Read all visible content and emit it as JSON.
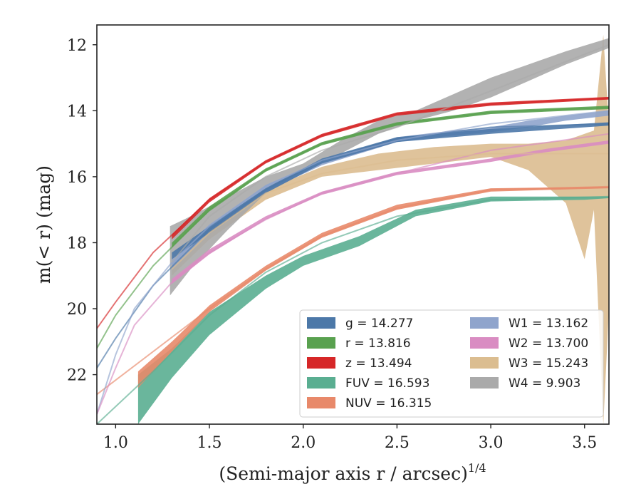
{
  "chart_data": {
    "type": "area",
    "xlabel": "(Semi-major axis r / arcsec)",
    "xlabel_superscript": "1/4",
    "ylabel": "m(< r) (mag)",
    "xlim": [
      0.9,
      3.63
    ],
    "ylim": [
      23.5,
      11.4
    ],
    "y_inverted": true,
    "x_ticks": [
      "1.0",
      "1.5",
      "2.0",
      "2.5",
      "3.0",
      "3.5"
    ],
    "y_ticks": [
      "12",
      "14",
      "16",
      "18",
      "20",
      "22"
    ],
    "legend_position": "lower-right",
    "series": [
      {
        "key": "g",
        "name": "g = 14.277",
        "color": "#4c78a8",
        "model": [
          [
            0.9,
            21.8
          ],
          [
            1.0,
            20.9
          ],
          [
            1.2,
            19.3
          ],
          [
            1.5,
            17.6
          ],
          [
            1.8,
            16.4
          ],
          [
            2.1,
            15.5
          ],
          [
            2.5,
            14.85
          ],
          [
            3.0,
            14.5
          ],
          [
            3.63,
            14.4
          ]
        ],
        "band_upper": [
          [
            1.3,
            18.3
          ],
          [
            1.5,
            17.5
          ],
          [
            1.8,
            16.35
          ],
          [
            2.1,
            15.45
          ],
          [
            2.5,
            14.8
          ],
          [
            3.0,
            14.55
          ],
          [
            3.63,
            14.35
          ]
        ],
        "band_lower": [
          [
            1.3,
            18.5
          ],
          [
            1.5,
            17.7
          ],
          [
            1.8,
            16.5
          ],
          [
            2.1,
            15.6
          ],
          [
            2.5,
            14.95
          ],
          [
            3.0,
            14.7
          ],
          [
            3.63,
            14.45
          ]
        ]
      },
      {
        "key": "r",
        "name": "r = 13.816",
        "color": "#59a14f",
        "model": [
          [
            0.9,
            21.2
          ],
          [
            1.0,
            20.2
          ],
          [
            1.2,
            18.7
          ],
          [
            1.5,
            17.0
          ],
          [
            1.8,
            15.8
          ],
          [
            2.1,
            15.0
          ],
          [
            2.5,
            14.4
          ],
          [
            3.0,
            14.05
          ],
          [
            3.63,
            13.9
          ]
        ],
        "band_upper": [
          [
            1.3,
            18.0
          ],
          [
            1.5,
            16.9
          ],
          [
            1.8,
            15.75
          ],
          [
            2.1,
            14.95
          ],
          [
            2.5,
            14.35
          ],
          [
            3.0,
            14.0
          ],
          [
            3.63,
            13.85
          ]
        ],
        "band_lower": [
          [
            1.3,
            18.15
          ],
          [
            1.5,
            17.05
          ],
          [
            1.8,
            15.85
          ],
          [
            2.1,
            15.05
          ],
          [
            2.5,
            14.45
          ],
          [
            3.0,
            14.1
          ],
          [
            3.63,
            13.95
          ]
        ]
      },
      {
        "key": "z",
        "name": "z = 13.494",
        "color": "#d62728",
        "model": [
          [
            0.9,
            20.6
          ],
          [
            1.0,
            19.8
          ],
          [
            1.2,
            18.3
          ],
          [
            1.5,
            16.7
          ],
          [
            1.8,
            15.55
          ],
          [
            2.1,
            14.75
          ],
          [
            2.5,
            14.1
          ],
          [
            3.0,
            13.8
          ],
          [
            3.63,
            13.62
          ]
        ],
        "band_upper": [
          [
            1.3,
            17.75
          ],
          [
            1.5,
            16.65
          ],
          [
            1.8,
            15.5
          ],
          [
            2.1,
            14.7
          ],
          [
            2.5,
            14.05
          ],
          [
            3.0,
            13.75
          ],
          [
            3.63,
            13.58
          ]
        ],
        "band_lower": [
          [
            1.3,
            17.9
          ],
          [
            1.5,
            16.78
          ],
          [
            1.8,
            15.6
          ],
          [
            2.1,
            14.8
          ],
          [
            2.5,
            14.15
          ],
          [
            3.0,
            13.85
          ],
          [
            3.63,
            13.66
          ]
        ]
      },
      {
        "key": "FUV",
        "name": "FUV = 16.593",
        "color": "#5aae91",
        "model": [
          [
            0.9,
            23.5
          ],
          [
            1.2,
            21.9
          ],
          [
            1.5,
            20.2
          ],
          [
            1.8,
            18.9
          ],
          [
            2.1,
            18.0
          ],
          [
            2.5,
            17.2
          ],
          [
            3.0,
            16.7
          ],
          [
            3.63,
            16.6
          ]
        ],
        "band_upper": [
          [
            1.12,
            22.0
          ],
          [
            1.3,
            21.2
          ],
          [
            1.5,
            20.1
          ],
          [
            1.8,
            19.0
          ],
          [
            2.0,
            18.4
          ],
          [
            2.3,
            17.8
          ],
          [
            2.6,
            17.0
          ],
          [
            3.0,
            16.6
          ],
          [
            3.5,
            16.6
          ],
          [
            3.63,
            16.6
          ]
        ],
        "band_lower": [
          [
            1.12,
            23.5
          ],
          [
            1.3,
            22.1
          ],
          [
            1.5,
            20.8
          ],
          [
            1.8,
            19.4
          ],
          [
            2.0,
            18.7
          ],
          [
            2.3,
            18.1
          ],
          [
            2.6,
            17.2
          ],
          [
            3.0,
            16.75
          ],
          [
            3.5,
            16.7
          ],
          [
            3.63,
            16.65
          ]
        ]
      },
      {
        "key": "NUV",
        "name": "NUV = 16.315",
        "color": "#e8896a",
        "model": [
          [
            0.9,
            22.6
          ],
          [
            1.2,
            21.3
          ],
          [
            1.5,
            20.0
          ],
          [
            1.8,
            18.8
          ],
          [
            2.1,
            17.8
          ],
          [
            2.5,
            16.95
          ],
          [
            3.0,
            16.4
          ],
          [
            3.63,
            16.3
          ]
        ],
        "band_upper": [
          [
            1.12,
            21.9
          ],
          [
            1.3,
            21.0
          ],
          [
            1.5,
            19.9
          ],
          [
            1.8,
            18.7
          ],
          [
            2.1,
            17.7
          ],
          [
            2.5,
            16.85
          ],
          [
            3.0,
            16.35
          ],
          [
            3.63,
            16.3
          ]
        ],
        "band_lower": [
          [
            1.12,
            22.4
          ],
          [
            1.3,
            21.3
          ],
          [
            1.5,
            20.1
          ],
          [
            1.8,
            18.85
          ],
          [
            2.1,
            17.85
          ],
          [
            2.5,
            17.0
          ],
          [
            3.0,
            16.45
          ],
          [
            3.63,
            16.35
          ]
        ]
      },
      {
        "key": "W1",
        "name": "W1 = 13.162",
        "color": "#8fa4cc",
        "model": [
          [
            0.9,
            23.2
          ],
          [
            1.0,
            21.4
          ],
          [
            1.1,
            20.0
          ],
          [
            1.3,
            18.6
          ],
          [
            1.5,
            17.5
          ],
          [
            1.8,
            16.3
          ],
          [
            2.1,
            15.5
          ],
          [
            2.5,
            14.9
          ],
          [
            3.0,
            14.4
          ],
          [
            3.63,
            14.0
          ]
        ],
        "band_upper": [
          [
            1.3,
            18.5
          ],
          [
            1.5,
            17.45
          ],
          [
            1.8,
            16.25
          ],
          [
            2.1,
            15.5
          ],
          [
            2.5,
            14.8
          ],
          [
            2.8,
            14.6
          ],
          [
            3.0,
            14.5
          ],
          [
            3.2,
            14.3
          ],
          [
            3.4,
            14.15
          ],
          [
            3.63,
            14.0
          ]
        ],
        "band_lower": [
          [
            1.3,
            18.8
          ],
          [
            1.5,
            17.65
          ],
          [
            1.8,
            16.45
          ],
          [
            2.1,
            15.65
          ],
          [
            2.5,
            14.95
          ],
          [
            2.8,
            14.75
          ],
          [
            3.0,
            14.65
          ],
          [
            3.2,
            14.5
          ],
          [
            3.4,
            14.3
          ],
          [
            3.63,
            14.15
          ]
        ]
      },
      {
        "key": "W2",
        "name": "W2 = 13.700",
        "color": "#d98cc2",
        "model": [
          [
            0.9,
            23.2
          ],
          [
            1.0,
            21.8
          ],
          [
            1.1,
            20.5
          ],
          [
            1.3,
            19.2
          ],
          [
            1.5,
            18.3
          ],
          [
            1.8,
            17.3
          ],
          [
            2.1,
            16.5
          ],
          [
            2.5,
            15.9
          ],
          [
            3.0,
            15.2
          ],
          [
            3.63,
            14.7
          ]
        ],
        "band_upper": [
          [
            1.3,
            19.1
          ],
          [
            1.5,
            18.2
          ],
          [
            1.8,
            17.2
          ],
          [
            2.1,
            16.45
          ],
          [
            2.5,
            15.85
          ],
          [
            3.0,
            15.45
          ],
          [
            3.3,
            15.15
          ],
          [
            3.63,
            14.9
          ]
        ],
        "band_lower": [
          [
            1.3,
            19.25
          ],
          [
            1.5,
            18.35
          ],
          [
            1.8,
            17.3
          ],
          [
            2.1,
            16.55
          ],
          [
            2.5,
            15.95
          ],
          [
            3.0,
            15.55
          ],
          [
            3.3,
            15.25
          ],
          [
            3.63,
            15.0
          ]
        ]
      },
      {
        "key": "W3",
        "name": "W3 = 15.243",
        "color": "#dbbd90",
        "model": [
          [
            1.3,
            18.8
          ],
          [
            1.5,
            17.7
          ],
          [
            1.8,
            16.5
          ],
          [
            2.1,
            15.9
          ],
          [
            2.5,
            15.5
          ],
          [
            3.0,
            15.3
          ],
          [
            3.63,
            15.3
          ]
        ],
        "band_upper": [
          [
            1.3,
            18.6
          ],
          [
            1.5,
            17.6
          ],
          [
            1.8,
            16.4
          ],
          [
            2.1,
            15.7
          ],
          [
            2.4,
            15.3
          ],
          [
            2.7,
            15.1
          ],
          [
            3.0,
            15.0
          ],
          [
            3.2,
            15.0
          ],
          [
            3.4,
            14.9
          ],
          [
            3.55,
            14.6
          ],
          [
            3.6,
            11.7
          ],
          [
            3.63,
            14.5
          ]
        ],
        "band_lower": [
          [
            1.3,
            19.0
          ],
          [
            1.5,
            17.9
          ],
          [
            1.8,
            16.7
          ],
          [
            2.1,
            16.0
          ],
          [
            2.4,
            15.8
          ],
          [
            2.7,
            15.6
          ],
          [
            3.0,
            15.4
          ],
          [
            3.2,
            15.8
          ],
          [
            3.4,
            16.8
          ],
          [
            3.5,
            18.5
          ],
          [
            3.55,
            17.0
          ],
          [
            3.6,
            23.5
          ],
          [
            3.63,
            20.0
          ]
        ]
      },
      {
        "key": "W4",
        "name": "W4 = 9.903",
        "color": "#aaaaaa",
        "model": [
          [
            1.3,
            18.6
          ],
          [
            1.5,
            17.2
          ],
          [
            1.8,
            16.0
          ],
          [
            2.1,
            15.2
          ],
          [
            2.5,
            14.5
          ],
          [
            3.0,
            13.4
          ],
          [
            3.63,
            12.0
          ]
        ],
        "band_upper": [
          [
            1.29,
            17.5
          ],
          [
            1.4,
            17.2
          ],
          [
            1.6,
            16.6
          ],
          [
            1.8,
            16.0
          ],
          [
            2.0,
            15.6
          ],
          [
            2.2,
            14.9
          ],
          [
            2.4,
            14.3
          ],
          [
            2.6,
            14.0
          ],
          [
            2.8,
            13.5
          ],
          [
            3.0,
            13.0
          ],
          [
            3.2,
            12.6
          ],
          [
            3.4,
            12.2
          ],
          [
            3.63,
            11.8
          ]
        ],
        "band_lower": [
          [
            1.29,
            19.6
          ],
          [
            1.4,
            18.8
          ],
          [
            1.6,
            17.6
          ],
          [
            1.8,
            16.5
          ],
          [
            2.0,
            15.9
          ],
          [
            2.2,
            15.3
          ],
          [
            2.4,
            14.7
          ],
          [
            2.6,
            14.3
          ],
          [
            2.8,
            14.0
          ],
          [
            3.0,
            13.6
          ],
          [
            3.2,
            13.1
          ],
          [
            3.4,
            12.6
          ],
          [
            3.63,
            12.1
          ]
        ]
      }
    ]
  }
}
